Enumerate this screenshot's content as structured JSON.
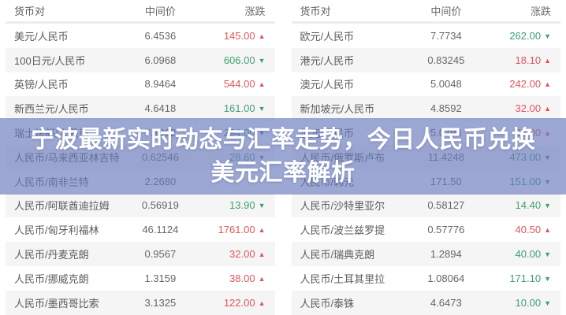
{
  "banner": {
    "title_line1": "宁波最新实时动态与汇率走势，今日人民币兑换",
    "title_line2": "美元汇率解析"
  },
  "colors": {
    "up": "#df575c",
    "down": "#3f9e74",
    "overlay": "rgba(104,122,190,0.66)",
    "alt_row": "#f5f5f5"
  },
  "icons": {
    "up": "▲",
    "down": "▼"
  },
  "table_headers": {
    "pair": "货币对",
    "mid_price": "中间价",
    "change": "涨跌"
  },
  "left_table": {
    "rows": [
      {
        "pair": "美元/人民币",
        "mid": "6.4536",
        "change": "145.00",
        "dir": "up"
      },
      {
        "pair": "100日元/人民币",
        "mid": "6.0968",
        "change": "606.00",
        "dir": "down"
      },
      {
        "pair": "英镑/人民币",
        "mid": "8.9464",
        "change": "544.00",
        "dir": "up"
      },
      {
        "pair": "新西兰元/人民币",
        "mid": "4.6418",
        "change": "161.00",
        "dir": "down"
      },
      {
        "pair": "瑞士法郎/人民币",
        "mid": "7.1862",
        "change": "294.00",
        "dir": "down"
      },
      {
        "pair": "人民币/马来西亚林吉特",
        "mid": "0.62546",
        "change": "28.60",
        "dir": "down"
      },
      {
        "pair": "人民币/南非兰特",
        "mid": "2.2680",
        "change": "",
        "dir": ""
      },
      {
        "pair": "人民币/阿联酋迪拉姆",
        "mid": "0.56919",
        "change": "13.90",
        "dir": "down"
      },
      {
        "pair": "人民币/匈牙利福林",
        "mid": "46.1124",
        "change": "1761.00",
        "dir": "up"
      },
      {
        "pair": "人民币/丹麦克朗",
        "mid": "0.9567",
        "change": "32.00",
        "dir": "up"
      },
      {
        "pair": "人民币/挪威克朗",
        "mid": "1.3159",
        "change": "38.00",
        "dir": "up"
      },
      {
        "pair": "人民币/墨西哥比索",
        "mid": "3.1325",
        "change": "122.00",
        "dir": "up"
      }
    ]
  },
  "right_table": {
    "rows": [
      {
        "pair": "欧元/人民币",
        "mid": "7.7734",
        "change": "262.00",
        "dir": "down"
      },
      {
        "pair": "港元/人民币",
        "mid": "0.83245",
        "change": "18.10",
        "dir": "up"
      },
      {
        "pair": "澳元/人民币",
        "mid": "5.0048",
        "change": "242.00",
        "dir": "up"
      },
      {
        "pair": "新加坡元/人民币",
        "mid": "4.8592",
        "change": "32.00",
        "dir": "up"
      },
      {
        "pair": "加元/人民币",
        "mid": "5.0796",
        "change": "35.00",
        "dir": "up"
      },
      {
        "pair": "人民币/俄罗斯卢布",
        "mid": "11.4248",
        "change": "473.00",
        "dir": "down"
      },
      {
        "pair": "人民币/韩元",
        "mid": "171.50",
        "change": "151.00",
        "dir": "down"
      },
      {
        "pair": "人民币/沙特里亚尔",
        "mid": "0.58127",
        "change": "14.40",
        "dir": "down"
      },
      {
        "pair": "人民币/波兰兹罗提",
        "mid": "0.57776",
        "change": "40.50",
        "dir": "up"
      },
      {
        "pair": "人民币/瑞典克朗",
        "mid": "1.2894",
        "change": "40.00",
        "dir": "down"
      },
      {
        "pair": "人民币/土耳其里拉",
        "mid": "1.08064",
        "change": "171.10",
        "dir": "down"
      },
      {
        "pair": "人民币/泰铢",
        "mid": "4.6473",
        "change": "10.00",
        "dir": "down"
      }
    ]
  }
}
